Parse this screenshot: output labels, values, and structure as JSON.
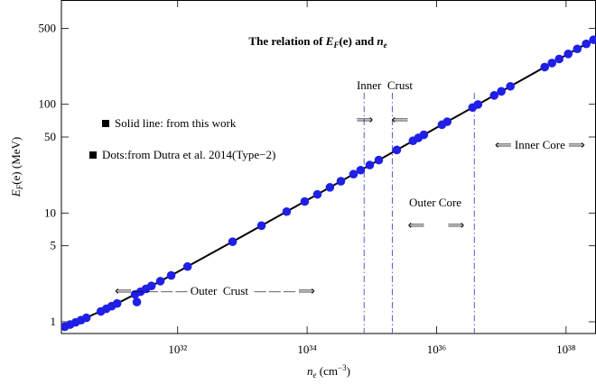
{
  "chart_data": {
    "type": "line",
    "title": [
      "The relation of ",
      "E",
      "F",
      "(e) and ",
      "n",
      "e"
    ],
    "xlabel": [
      "n",
      "e",
      " (cm",
      "−3",
      ")"
    ],
    "ylabel": [
      "E",
      "F",
      "(e) (MeV)"
    ],
    "xscale": "log",
    "yscale": "log",
    "xlim": [
      1.6e+30,
      2.9e+38
    ],
    "ylim": [
      0.78,
      910
    ],
    "xticks": [
      {
        "value": 1e+32,
        "label": "10³²"
      },
      {
        "value": 1e+34,
        "label": "10³⁴"
      },
      {
        "value": 1e+36,
        "label": "10³⁶"
      },
      {
        "value": 1e+38,
        "label": "10³⁸"
      }
    ],
    "yticks": [
      1,
      5,
      10,
      50,
      100,
      500
    ],
    "series": [
      {
        "name": "Solid line: from this work",
        "type": "line",
        "color": "#000000",
        "x": [
          1.6e+30,
          3.16e+30,
          1e+31,
          3.16e+31,
          1e+32,
          1e+33,
          1e+34,
          1e+35,
          1e+36,
          1e+37,
          1e+38,
          2.9e+38
        ],
        "values": [
          0.878,
          1.031,
          1.41,
          1.995,
          2.877,
          6.12,
          13.15,
          28.3,
          61.0,
          131.4,
          283.2,
          404
        ]
      },
      {
        "name": "Dots:from Dutra et al. 2014(Type−2)",
        "type": "scatter",
        "color": "#1f1fe6",
        "x": [
          1.8e+30,
          2.18e+30,
          2.65e+30,
          3.21e+30,
          3.89e+30,
          6.5e+30,
          7.89e+30,
          9.55e+30,
          1.16e+31,
          2.2e+31,
          2.67e+31,
          3.24e+31,
          3.93e+31,
          5.41e+31,
          7.94e+31,
          1.42e+32,
          7.05e+32,
          1.97e+33,
          4.83e+33,
          9.18e+33,
          1.44e+34,
          2.25e+34,
          3.32e+34,
          5.2e+34,
          6.71e+34,
          9.27e+34,
          1.28e+35,
          2.43e+35,
          4.32e+35,
          5.24e+35,
          6.35e+35,
          1.21e+36,
          1.46e+36,
          3.59e+36,
          4.36e+36,
          7.76e+36,
          1e+37,
          1.38e+37,
          4.68e+37,
          6.05e+37,
          7.82e+37,
          1.08e+38,
          1.49e+38,
          2.05e+38,
          2.65e+38,
          2.34e+31
        ],
        "values": [
          0.901,
          0.943,
          0.988,
          1.035,
          1.087,
          1.245,
          1.316,
          1.391,
          1.473,
          1.785,
          1.89,
          2.009,
          2.136,
          2.364,
          2.669,
          3.22,
          5.449,
          7.66,
          10.31,
          12.78,
          14.84,
          17.23,
          19.61,
          22.77,
          24.79,
          27.63,
          30.71,
          38.05,
          46.17,
          49.13,
          52.4,
          64.9,
          69.2,
          93.4,
          99.6,
          120.8,
          131.6,
          146.3,
          220,
          239.5,
          260.8,
          290.6,
          323.1,
          359.4,
          392,
          1.52
        ]
      }
    ],
    "boundaries": [
      7.6e+34,
      2.07e+35,
      3.83e+36
    ],
    "boundary_color": "#5a5ad0",
    "annotations": [
      "Inner  Crust",
      "⟹",
      "⟸",
      "Outer Core",
      "⟸",
      "⟹",
      "⟸ Inner Core ⟹",
      "⟸— — — — Outer  Crust  — — — ⟹"
    ]
  }
}
